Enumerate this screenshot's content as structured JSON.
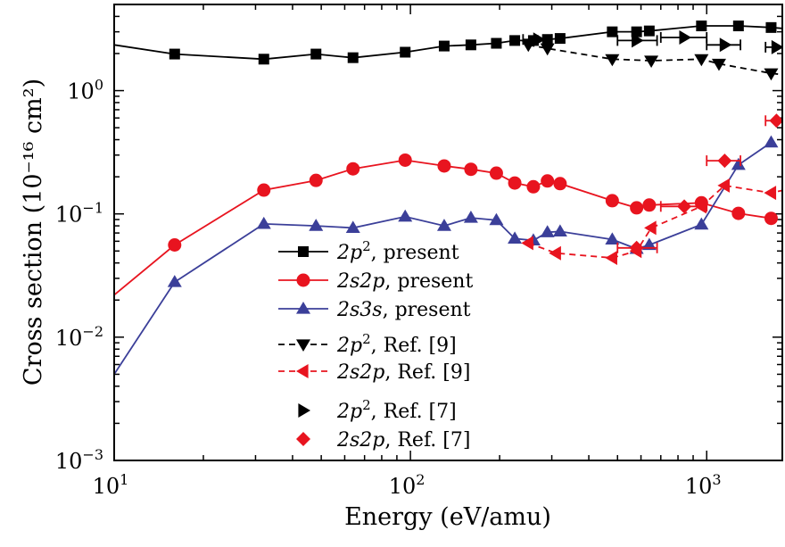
{
  "chart_data": {
    "type": "line",
    "xscale": "log",
    "yscale": "log",
    "xlim": [
      10,
      1800
    ],
    "ylim": [
      0.001,
      5
    ],
    "xlabel": "Energy (eV/amu)",
    "ylabel": "Cross section (10⁻¹⁶ cm²)",
    "x_ticks": [
      {
        "value": 10,
        "base": "10",
        "exp": "1"
      },
      {
        "value": 100,
        "base": "10",
        "exp": "2"
      },
      {
        "value": 1000,
        "base": "10",
        "exp": "3"
      }
    ],
    "y_ticks": [
      {
        "value": 0.001,
        "base": "10",
        "exp": "−3"
      },
      {
        "value": 0.01,
        "base": "10",
        "exp": "−2"
      },
      {
        "value": 0.1,
        "base": "10",
        "exp": "−1"
      },
      {
        "value": 1,
        "base": "10",
        "exp": "0"
      }
    ],
    "series": [
      {
        "id": "2p2-present",
        "name": "2p², present",
        "legend_main": "2p",
        "legend_sup": "2",
        "legend_rest": ", present",
        "color": "#000000",
        "marker": "square",
        "linestyle": "solid",
        "line_x": [
          10,
          16,
          32,
          48,
          64,
          96,
          130,
          160,
          195,
          225,
          260,
          290,
          320,
          480,
          580,
          640,
          960,
          1280,
          1650,
          1800
        ],
        "line_y": [
          2.35,
          1.98,
          1.8,
          1.98,
          1.85,
          2.05,
          2.3,
          2.35,
          2.42,
          2.55,
          2.55,
          2.6,
          2.65,
          3.0,
          3.0,
          3.05,
          3.35,
          3.35,
          3.25,
          3.2
        ],
        "marker_x": [
          16,
          32,
          48,
          64,
          96,
          130,
          160,
          195,
          225,
          260,
          290,
          320,
          480,
          580,
          640,
          960,
          1280,
          1650
        ],
        "marker_y": [
          1.98,
          1.8,
          1.98,
          1.85,
          2.05,
          2.3,
          2.35,
          2.42,
          2.55,
          2.55,
          2.6,
          2.65,
          3.0,
          3.0,
          3.05,
          3.35,
          3.35,
          3.25
        ]
      },
      {
        "id": "2s2p-present",
        "name": "2s2p, present",
        "legend_main": "2s2p",
        "legend_sup": "",
        "legend_rest": ", present",
        "color": "#e8141f",
        "marker": "circle",
        "linestyle": "solid",
        "line_x": [
          10,
          16,
          32,
          48,
          64,
          96,
          130,
          160,
          195,
          225,
          260,
          290,
          320,
          480,
          580,
          640,
          960,
          1280,
          1650
        ],
        "line_y": [
          0.022,
          0.056,
          0.156,
          0.187,
          0.232,
          0.273,
          0.245,
          0.23,
          0.214,
          0.178,
          0.166,
          0.185,
          0.176,
          0.128,
          0.112,
          0.118,
          0.123,
          0.101,
          0.092
        ],
        "marker_x": [
          16,
          32,
          48,
          64,
          96,
          130,
          160,
          195,
          225,
          260,
          290,
          320,
          480,
          580,
          640,
          960,
          1280,
          1650
        ],
        "marker_y": [
          0.056,
          0.156,
          0.187,
          0.232,
          0.273,
          0.245,
          0.23,
          0.214,
          0.178,
          0.166,
          0.185,
          0.176,
          0.128,
          0.112,
          0.118,
          0.123,
          0.101,
          0.092
        ]
      },
      {
        "id": "2s3s-present",
        "name": "2s3s, present",
        "legend_main": "2s3s",
        "legend_sup": "",
        "legend_rest": ", present",
        "color": "#3b3f99",
        "marker": "triangle-up",
        "linestyle": "solid",
        "line_x": [
          10,
          16,
          32,
          48,
          64,
          96,
          130,
          160,
          195,
          225,
          260,
          290,
          320,
          480,
          580,
          640,
          960,
          1280,
          1650
        ],
        "line_y": [
          0.005,
          0.028,
          0.083,
          0.08,
          0.077,
          0.095,
          0.08,
          0.093,
          0.089,
          0.063,
          0.061,
          0.071,
          0.072,
          0.062,
          0.052,
          0.056,
          0.082,
          0.25,
          0.38
        ],
        "marker_x": [
          16,
          32,
          48,
          64,
          96,
          130,
          160,
          195,
          225,
          260,
          290,
          320,
          480,
          580,
          640,
          960,
          1280,
          1650
        ],
        "marker_y": [
          0.028,
          0.083,
          0.08,
          0.077,
          0.095,
          0.08,
          0.093,
          0.089,
          0.063,
          0.061,
          0.071,
          0.072,
          0.062,
          0.052,
          0.056,
          0.082,
          0.25,
          0.38
        ]
      },
      {
        "id": "2p2-ref9",
        "name": "2p², Ref. [9]",
        "legend_main": "2p",
        "legend_sup": "2",
        "legend_rest": ", Ref. [9]",
        "color": "#000000",
        "marker": "triangle-down",
        "linestyle": "dashed",
        "line_x": [
          250,
          290,
          480,
          650,
          960,
          1100,
          1650,
          1800
        ],
        "line_y": [
          2.35,
          2.2,
          1.8,
          1.75,
          1.8,
          1.65,
          1.38,
          1.35
        ],
        "marker_x": [
          250,
          290,
          480,
          650,
          960,
          1100,
          1650
        ],
        "marker_y": [
          2.35,
          2.2,
          1.8,
          1.75,
          1.8,
          1.65,
          1.38
        ]
      },
      {
        "id": "2s2p-ref9",
        "name": "2s2p, Ref. [9]",
        "legend_main": "2s2p",
        "legend_sup": "",
        "legend_rest": ", Ref. [9]",
        "color": "#e8141f",
        "marker": "triangle-left",
        "linestyle": "dashed",
        "line_x": [
          250,
          310,
          480,
          580,
          650,
          960,
          1150,
          1650,
          1800
        ],
        "line_y": [
          0.058,
          0.048,
          0.044,
          0.05,
          0.077,
          0.115,
          0.17,
          0.148,
          0.155
        ],
        "marker_x": [
          250,
          310,
          480,
          580,
          650,
          960,
          1150,
          1650
        ],
        "marker_y": [
          0.058,
          0.048,
          0.044,
          0.05,
          0.077,
          0.115,
          0.17,
          0.148
        ]
      },
      {
        "id": "2p2-ref7",
        "name": "2p², Ref. [7]",
        "legend_main": "2p",
        "legend_sup": "2",
        "legend_rest": ", Ref. [7]",
        "color": "#000000",
        "marker": "triangle-right",
        "linestyle": "none",
        "marker_x": [
          270,
          580,
          840,
          1150,
          1720
        ],
        "marker_y": [
          2.6,
          2.55,
          2.7,
          2.35,
          2.25
        ],
        "xerr_low": [
          240,
          500,
          700,
          1000,
          1580
        ],
        "xerr_high": [
          300,
          680,
          1000,
          1300,
          1800
        ]
      },
      {
        "id": "2s2p-ref7",
        "name": "2s2p, Ref. [7]",
        "legend_main": "2s2p",
        "legend_sup": "",
        "legend_rest": ", Ref. [7]",
        "color": "#e8141f",
        "marker": "diamond",
        "linestyle": "none",
        "marker_x": [
          580,
          840,
          1150,
          1720
        ],
        "marker_y": [
          0.053,
          0.115,
          0.27,
          0.57
        ],
        "xerr_low": [
          500,
          700,
          1000,
          1580
        ],
        "xerr_high": [
          680,
          1000,
          1300,
          1800
        ]
      }
    ],
    "legend_location": "center-left"
  }
}
